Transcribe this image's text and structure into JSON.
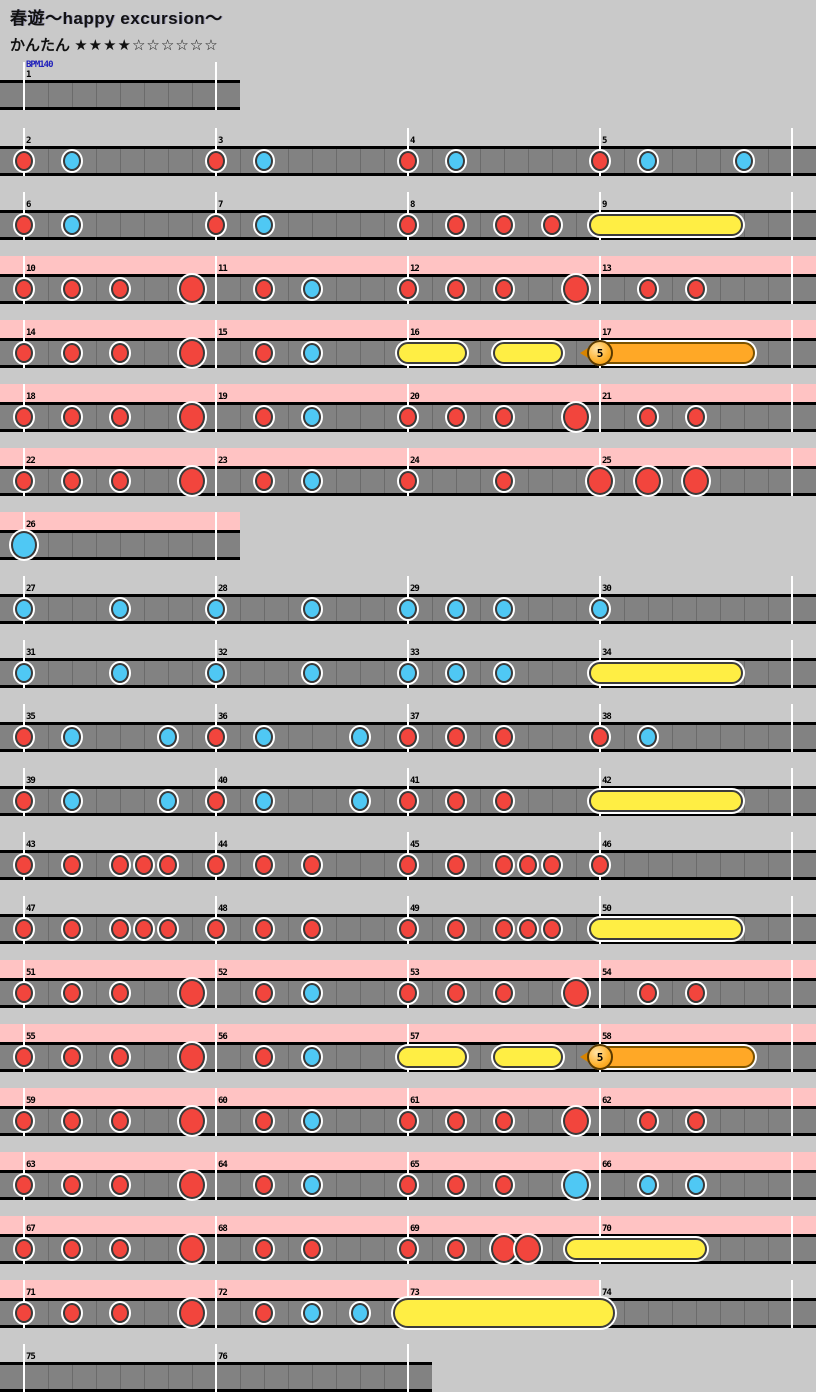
{
  "header": {
    "title": "春遊～happy excursion～",
    "difficulty_label": "かんたん",
    "stars": "★★★★☆☆☆☆☆☆",
    "bpm_label": "BPM140"
  },
  "colors": {
    "background": "#c9c9c9",
    "gogo_pink": "#ffc3c3",
    "lane": "#828282",
    "lane_cell_line": "#6b6b6b",
    "measure_line": "#ffffff",
    "don_red": "#f2453d",
    "ka_blue": "#4fc8f4",
    "roll_yellow": "#ffee44",
    "balloon_orange": "#ffa826",
    "balloon_ball": "#ffb535",
    "bpm_text": "#2222bb",
    "number_text": "#000000"
  },
  "chart_data": {
    "type": "taiko_rhythm_chart",
    "song_title": "春遊～happy excursion～",
    "difficulty": "かんたん",
    "stars_filled": 4,
    "stars_total": 10,
    "bpm": 140,
    "eighths_per_measure": 8,
    "note_types": {
      "d": "don (small red)",
      "k": "ka (small blue)",
      "D": "big don (large red)",
      "K": "big ka (large blue)"
    },
    "roll_types": {
      "r": "drumroll (yellow bar)",
      "R": "big drumroll (tall yellow bar)",
      "b": "balloon note (orange, label = hit count)"
    },
    "note_format": "[measure, eighth, type]",
    "roll_format": "[start_measure, start_eighth, end_measure, end_eighth, type, label?]",
    "rows": [
      {
        "start": 1,
        "count": 1,
        "gogo": 0,
        "notes": [],
        "rolls": []
      },
      {
        "start": 2,
        "count": 4,
        "gogo": 0,
        "notes": [
          [
            2,
            0,
            "d"
          ],
          [
            2,
            2,
            "k"
          ],
          [
            3,
            0,
            "d"
          ],
          [
            3,
            2,
            "k"
          ],
          [
            4,
            0,
            "d"
          ],
          [
            4,
            2,
            "k"
          ],
          [
            5,
            0,
            "d"
          ],
          [
            5,
            2,
            "k"
          ],
          [
            5,
            6,
            "k"
          ]
        ],
        "rolls": []
      },
      {
        "start": 6,
        "count": 4,
        "gogo": 0,
        "notes": [
          [
            6,
            0,
            "d"
          ],
          [
            6,
            2,
            "k"
          ],
          [
            7,
            0,
            "d"
          ],
          [
            7,
            2,
            "k"
          ],
          [
            8,
            0,
            "d"
          ],
          [
            8,
            2,
            "d"
          ],
          [
            8,
            4,
            "d"
          ],
          [
            8,
            6,
            "d"
          ]
        ],
        "rolls": [
          [
            9,
            0,
            9,
            5.5,
            "r"
          ]
        ]
      },
      {
        "start": 10,
        "count": 4,
        "gogo": 816,
        "notes": [
          [
            10,
            0,
            "d"
          ],
          [
            10,
            2,
            "d"
          ],
          [
            10,
            4,
            "d"
          ],
          [
            10,
            7,
            "D"
          ],
          [
            11,
            2,
            "d"
          ],
          [
            11,
            4,
            "k"
          ],
          [
            12,
            0,
            "d"
          ],
          [
            12,
            2,
            "d"
          ],
          [
            12,
            4,
            "d"
          ],
          [
            12,
            7,
            "D"
          ],
          [
            13,
            2,
            "d"
          ],
          [
            13,
            4,
            "d"
          ]
        ],
        "rolls": []
      },
      {
        "start": 14,
        "count": 4,
        "gogo": 816,
        "notes": [
          [
            14,
            0,
            "d"
          ],
          [
            14,
            2,
            "d"
          ],
          [
            14,
            4,
            "d"
          ],
          [
            14,
            7,
            "D"
          ],
          [
            15,
            2,
            "d"
          ],
          [
            15,
            4,
            "k"
          ]
        ],
        "rolls": [
          [
            16,
            0,
            16,
            2,
            "r"
          ],
          [
            16,
            4,
            16,
            6,
            "r"
          ],
          [
            17,
            0,
            17,
            6,
            "b",
            "5"
          ]
        ]
      },
      {
        "start": 18,
        "count": 4,
        "gogo": 816,
        "notes": [
          [
            18,
            0,
            "d"
          ],
          [
            18,
            2,
            "d"
          ],
          [
            18,
            4,
            "d"
          ],
          [
            18,
            7,
            "D"
          ],
          [
            19,
            2,
            "d"
          ],
          [
            19,
            4,
            "k"
          ],
          [
            20,
            0,
            "d"
          ],
          [
            20,
            2,
            "d"
          ],
          [
            20,
            4,
            "d"
          ],
          [
            20,
            7,
            "D"
          ],
          [
            21,
            2,
            "d"
          ],
          [
            21,
            4,
            "d"
          ]
        ],
        "rolls": []
      },
      {
        "start": 22,
        "count": 4,
        "gogo": 816,
        "notes": [
          [
            22,
            0,
            "d"
          ],
          [
            22,
            2,
            "d"
          ],
          [
            22,
            4,
            "d"
          ],
          [
            22,
            7,
            "D"
          ],
          [
            23,
            2,
            "d"
          ],
          [
            23,
            4,
            "k"
          ],
          [
            24,
            0,
            "d"
          ],
          [
            24,
            4,
            "d"
          ],
          [
            25,
            0,
            "D"
          ],
          [
            25,
            2,
            "D"
          ],
          [
            25,
            4,
            "D"
          ]
        ],
        "rolls": []
      },
      {
        "start": 26,
        "count": 1,
        "gogo": 240,
        "notes": [
          [
            26,
            0,
            "K"
          ]
        ],
        "rolls": []
      },
      {
        "start": 27,
        "count": 4,
        "gogo": 0,
        "notes": [
          [
            27,
            0,
            "k"
          ],
          [
            27,
            4,
            "k"
          ],
          [
            28,
            0,
            "k"
          ],
          [
            28,
            4,
            "k"
          ],
          [
            29,
            0,
            "k"
          ],
          [
            29,
            2,
            "k"
          ],
          [
            29,
            4,
            "k"
          ],
          [
            30,
            0,
            "k"
          ]
        ],
        "rolls": []
      },
      {
        "start": 31,
        "count": 4,
        "gogo": 0,
        "notes": [
          [
            31,
            0,
            "k"
          ],
          [
            31,
            4,
            "k"
          ],
          [
            32,
            0,
            "k"
          ],
          [
            32,
            4,
            "k"
          ],
          [
            33,
            0,
            "k"
          ],
          [
            33,
            2,
            "k"
          ],
          [
            33,
            4,
            "k"
          ]
        ],
        "rolls": [
          [
            34,
            0,
            34,
            5.5,
            "r"
          ]
        ]
      },
      {
        "start": 35,
        "count": 4,
        "gogo": 0,
        "notes": [
          [
            35,
            0,
            "d"
          ],
          [
            35,
            2,
            "k"
          ],
          [
            35,
            6,
            "k"
          ],
          [
            36,
            0,
            "d"
          ],
          [
            36,
            2,
            "k"
          ],
          [
            36,
            6,
            "k"
          ],
          [
            37,
            0,
            "d"
          ],
          [
            37,
            2,
            "d"
          ],
          [
            37,
            4,
            "d"
          ],
          [
            38,
            0,
            "d"
          ],
          [
            38,
            2,
            "k"
          ]
        ],
        "rolls": []
      },
      {
        "start": 39,
        "count": 4,
        "gogo": 0,
        "notes": [
          [
            39,
            0,
            "d"
          ],
          [
            39,
            2,
            "k"
          ],
          [
            39,
            6,
            "k"
          ],
          [
            40,
            0,
            "d"
          ],
          [
            40,
            2,
            "k"
          ],
          [
            40,
            6,
            "k"
          ],
          [
            41,
            0,
            "d"
          ],
          [
            41,
            2,
            "d"
          ],
          [
            41,
            4,
            "d"
          ]
        ],
        "rolls": [
          [
            42,
            0,
            42,
            5.5,
            "r"
          ]
        ]
      },
      {
        "start": 43,
        "count": 4,
        "gogo": 0,
        "notes": [
          [
            43,
            0,
            "d"
          ],
          [
            43,
            2,
            "d"
          ],
          [
            43,
            4,
            "d"
          ],
          [
            43,
            5,
            "d"
          ],
          [
            43,
            6,
            "d"
          ],
          [
            44,
            0,
            "d"
          ],
          [
            44,
            2,
            "d"
          ],
          [
            44,
            4,
            "d"
          ],
          [
            45,
            0,
            "d"
          ],
          [
            45,
            2,
            "d"
          ],
          [
            45,
            4,
            "d"
          ],
          [
            45,
            5,
            "d"
          ],
          [
            45,
            6,
            "d"
          ],
          [
            46,
            0,
            "d"
          ]
        ],
        "rolls": []
      },
      {
        "start": 47,
        "count": 4,
        "gogo": 0,
        "notes": [
          [
            47,
            0,
            "d"
          ],
          [
            47,
            2,
            "d"
          ],
          [
            47,
            4,
            "d"
          ],
          [
            47,
            5,
            "d"
          ],
          [
            47,
            6,
            "d"
          ],
          [
            48,
            0,
            "d"
          ],
          [
            48,
            2,
            "d"
          ],
          [
            48,
            4,
            "d"
          ],
          [
            49,
            0,
            "d"
          ],
          [
            49,
            2,
            "d"
          ],
          [
            49,
            4,
            "d"
          ],
          [
            49,
            5,
            "d"
          ],
          [
            49,
            6,
            "d"
          ]
        ],
        "rolls": [
          [
            50,
            0,
            50,
            5.5,
            "r"
          ]
        ]
      },
      {
        "start": 51,
        "count": 4,
        "gogo": 816,
        "notes": [
          [
            51,
            0,
            "d"
          ],
          [
            51,
            2,
            "d"
          ],
          [
            51,
            4,
            "d"
          ],
          [
            51,
            7,
            "D"
          ],
          [
            52,
            2,
            "d"
          ],
          [
            52,
            4,
            "k"
          ],
          [
            53,
            0,
            "d"
          ],
          [
            53,
            2,
            "d"
          ],
          [
            53,
            4,
            "d"
          ],
          [
            53,
            7,
            "D"
          ],
          [
            54,
            2,
            "d"
          ],
          [
            54,
            4,
            "d"
          ]
        ],
        "rolls": []
      },
      {
        "start": 55,
        "count": 4,
        "gogo": 816,
        "notes": [
          [
            55,
            0,
            "d"
          ],
          [
            55,
            2,
            "d"
          ],
          [
            55,
            4,
            "d"
          ],
          [
            55,
            7,
            "D"
          ],
          [
            56,
            2,
            "d"
          ],
          [
            56,
            4,
            "k"
          ]
        ],
        "rolls": [
          [
            57,
            0,
            57,
            2,
            "r"
          ],
          [
            57,
            4,
            57,
            6,
            "r"
          ],
          [
            58,
            0,
            58,
            6,
            "b",
            "5"
          ]
        ]
      },
      {
        "start": 59,
        "count": 4,
        "gogo": 816,
        "notes": [
          [
            59,
            0,
            "d"
          ],
          [
            59,
            2,
            "d"
          ],
          [
            59,
            4,
            "d"
          ],
          [
            59,
            7,
            "D"
          ],
          [
            60,
            2,
            "d"
          ],
          [
            60,
            4,
            "k"
          ],
          [
            61,
            0,
            "d"
          ],
          [
            61,
            2,
            "d"
          ],
          [
            61,
            4,
            "d"
          ],
          [
            61,
            7,
            "D"
          ],
          [
            62,
            2,
            "d"
          ],
          [
            62,
            4,
            "d"
          ]
        ],
        "rolls": []
      },
      {
        "start": 63,
        "count": 4,
        "gogo": 816,
        "notes": [
          [
            63,
            0,
            "d"
          ],
          [
            63,
            2,
            "d"
          ],
          [
            63,
            4,
            "d"
          ],
          [
            63,
            7,
            "D"
          ],
          [
            64,
            2,
            "d"
          ],
          [
            64,
            4,
            "k"
          ],
          [
            65,
            0,
            "d"
          ],
          [
            65,
            2,
            "d"
          ],
          [
            65,
            4,
            "d"
          ],
          [
            65,
            7,
            "K"
          ],
          [
            66,
            2,
            "k"
          ],
          [
            66,
            4,
            "k"
          ]
        ],
        "rolls": []
      },
      {
        "start": 67,
        "count": 4,
        "gogo": 816,
        "notes": [
          [
            67,
            0,
            "d"
          ],
          [
            67,
            2,
            "d"
          ],
          [
            67,
            4,
            "d"
          ],
          [
            67,
            7,
            "D"
          ],
          [
            68,
            2,
            "d"
          ],
          [
            68,
            4,
            "d"
          ],
          [
            69,
            0,
            "d"
          ],
          [
            69,
            2,
            "d"
          ],
          [
            69,
            4,
            "D"
          ],
          [
            69,
            5,
            "D"
          ]
        ],
        "rolls": [
          [
            69,
            7,
            70,
            4,
            "r"
          ]
        ]
      },
      {
        "start": 71,
        "count": 4,
        "gogo": 600,
        "notes": [
          [
            71,
            0,
            "d"
          ],
          [
            71,
            2,
            "d"
          ],
          [
            71,
            4,
            "d"
          ],
          [
            71,
            7,
            "D"
          ],
          [
            72,
            2,
            "d"
          ],
          [
            72,
            4,
            "k"
          ],
          [
            72,
            6,
            "k"
          ]
        ],
        "rolls": [
          [
            73,
            0,
            74,
            0,
            "R"
          ]
        ]
      },
      {
        "start": 75,
        "count": 2,
        "gogo": 0,
        "notes": [],
        "rolls": []
      }
    ]
  }
}
